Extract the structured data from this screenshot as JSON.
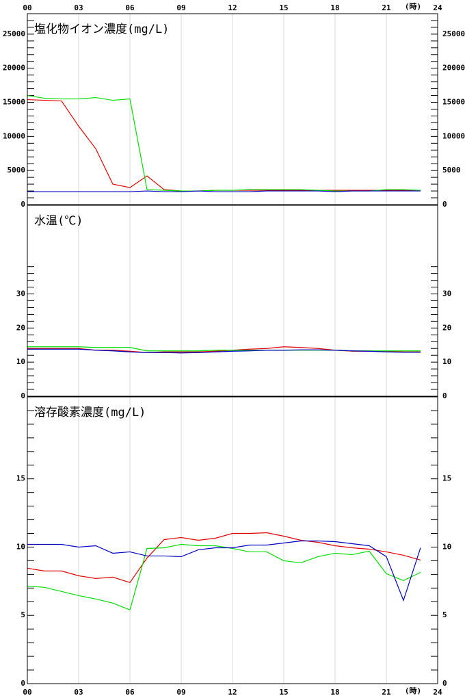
{
  "chart_data": [
    {
      "type": "line",
      "title": "塩化物イオン濃度(mg/L)",
      "x_label": "(時)",
      "xtick_side": "top",
      "x": [
        0,
        1,
        2,
        3,
        4,
        5,
        6,
        7,
        8,
        9,
        10,
        11,
        12,
        13,
        14,
        15,
        16,
        17,
        18,
        19,
        20,
        21,
        22,
        23
      ],
      "xlim": [
        0,
        24
      ],
      "xticks": [
        {
          "value": 0,
          "label": "00"
        },
        {
          "value": 3,
          "label": "03"
        },
        {
          "value": 6,
          "label": "06"
        },
        {
          "value": 9,
          "label": "09"
        },
        12,
        15,
        18,
        21,
        24
      ],
      "ylim": [
        0,
        28000
      ],
      "yticks": [
        0,
        5000,
        10000,
        15000,
        20000,
        25000
      ],
      "minor_yticks": [
        1000,
        2000,
        3000,
        4000,
        6000,
        7000,
        8000,
        9000,
        11000,
        12000,
        13000,
        14000,
        16000,
        17000,
        18000,
        19000,
        21000,
        22000,
        23000,
        24000,
        26000,
        27000
      ],
      "grid": true,
      "series": [
        {
          "color": "#e00000",
          "values": [
            15400,
            15300,
            15200,
            11500,
            8200,
            3000,
            2500,
            4200,
            2200,
            2000,
            2000,
            2100,
            2100,
            2100,
            2100,
            2100,
            2100,
            2100,
            2100,
            2100,
            2100,
            2100,
            2100,
            2100
          ]
        },
        {
          "color": "#00dd00",
          "values": [
            16000,
            15600,
            15500,
            15500,
            15700,
            15300,
            15500,
            2200,
            2100,
            2000,
            2000,
            2100,
            2100,
            2200,
            2200,
            2200,
            2200,
            2100,
            2000,
            2000,
            2000,
            2200,
            2200,
            2100
          ]
        },
        {
          "color": "#0000c0",
          "values": [
            1900,
            1900,
            1900,
            1900,
            1900,
            1900,
            1900,
            2000,
            1900,
            1900,
            2000,
            1900,
            1900,
            1900,
            2000,
            2000,
            2000,
            2000,
            1900,
            2000,
            2000,
            2000,
            2000,
            2000
          ]
        }
      ]
    },
    {
      "type": "line",
      "title": "水温(℃)",
      "x": [
        0,
        1,
        2,
        3,
        4,
        5,
        6,
        7,
        8,
        9,
        10,
        11,
        12,
        13,
        14,
        15,
        16,
        17,
        18,
        19,
        20,
        21,
        22,
        23
      ],
      "xlim": [
        0,
        24
      ],
      "xticks": [
        0,
        3,
        6,
        9,
        12,
        15,
        18,
        21,
        24
      ],
      "ylim": [
        0,
        56
      ],
      "yticks": [
        0,
        10,
        20,
        30
      ],
      "minor_yticks": [
        2,
        4,
        6,
        8,
        12,
        14,
        16,
        18,
        22,
        24,
        26,
        28,
        32,
        34,
        36,
        38
      ],
      "grid": true,
      "series": [
        {
          "color": "#e00000",
          "values": [
            14,
            14,
            14,
            14,
            13.5,
            13.5,
            13.2,
            12.8,
            13,
            13,
            13,
            13.2,
            13.5,
            13.8,
            14,
            14.5,
            14.3,
            14,
            13.5,
            13.2,
            13.2,
            13.2,
            13,
            13
          ]
        },
        {
          "color": "#00dd00",
          "values": [
            14.5,
            14.5,
            14.5,
            14.5,
            14.3,
            14.3,
            14.3,
            13.3,
            13.3,
            13.3,
            13.3,
            13.5,
            13.5,
            13.5,
            13.5,
            13.5,
            13.5,
            13.5,
            13.5,
            13.3,
            13.3,
            13.3,
            13.3,
            13.3
          ]
        },
        {
          "color": "#0000c0",
          "values": [
            13.8,
            13.8,
            13.8,
            13.8,
            13.5,
            13.3,
            13,
            12.8,
            12.8,
            12.7,
            12.8,
            13,
            13.2,
            13.3,
            13.5,
            13.5,
            13.6,
            13.6,
            13.5,
            13.3,
            13.2,
            13,
            12.9,
            12.9
          ]
        }
      ]
    },
    {
      "type": "line",
      "title": "溶存酸素濃度(mg/L)",
      "x_label": "(時)",
      "xtick_side": "bottom",
      "x": [
        0,
        1,
        2,
        3,
        4,
        5,
        6,
        7,
        8,
        9,
        10,
        11,
        12,
        13,
        14,
        15,
        16,
        17,
        18,
        19,
        20,
        21,
        22,
        23
      ],
      "xlim": [
        0,
        24
      ],
      "xticks": [
        {
          "value": 0,
          "label": "00"
        },
        {
          "value": 3,
          "label": "03"
        },
        {
          "value": 6,
          "label": "06"
        },
        {
          "value": 9,
          "label": "09"
        },
        12,
        15,
        18,
        21,
        24
      ],
      "ylim": [
        0,
        21
      ],
      "yticks": [
        0,
        5,
        10,
        15
      ],
      "minor_yticks": [
        1,
        2,
        3,
        4,
        6,
        7,
        8,
        9,
        11,
        12,
        13,
        14,
        16,
        17,
        18,
        19,
        20
      ],
      "grid": true,
      "series": [
        {
          "color": "#e00000",
          "values": [
            8.45,
            8.25,
            8.25,
            7.9,
            7.7,
            7.8,
            7.4,
            9.2,
            10.55,
            10.7,
            10.5,
            10.65,
            11,
            11,
            11.05,
            10.8,
            10.5,
            10.35,
            10.1,
            9.95,
            9.85,
            9.65,
            9.4,
            9.05
          ]
        },
        {
          "color": "#00dd00",
          "values": [
            7.15,
            7.05,
            6.75,
            6.45,
            6.2,
            5.9,
            5.4,
            9.9,
            9.95,
            10.2,
            10.1,
            10.1,
            9.9,
            9.65,
            9.65,
            9,
            8.85,
            9.3,
            9.55,
            9.45,
            9.7,
            8.05,
            7.55,
            8.15
          ]
        },
        {
          "color": "#0000c0",
          "values": [
            10.2,
            10.2,
            10.2,
            10,
            10.1,
            9.55,
            9.65,
            9.35,
            9.35,
            9.3,
            9.8,
            9.95,
            9.95,
            10.15,
            10.15,
            10.3,
            10.45,
            10.45,
            10.4,
            10.25,
            10.1,
            9.3,
            6.1,
            9.95
          ]
        }
      ]
    }
  ]
}
